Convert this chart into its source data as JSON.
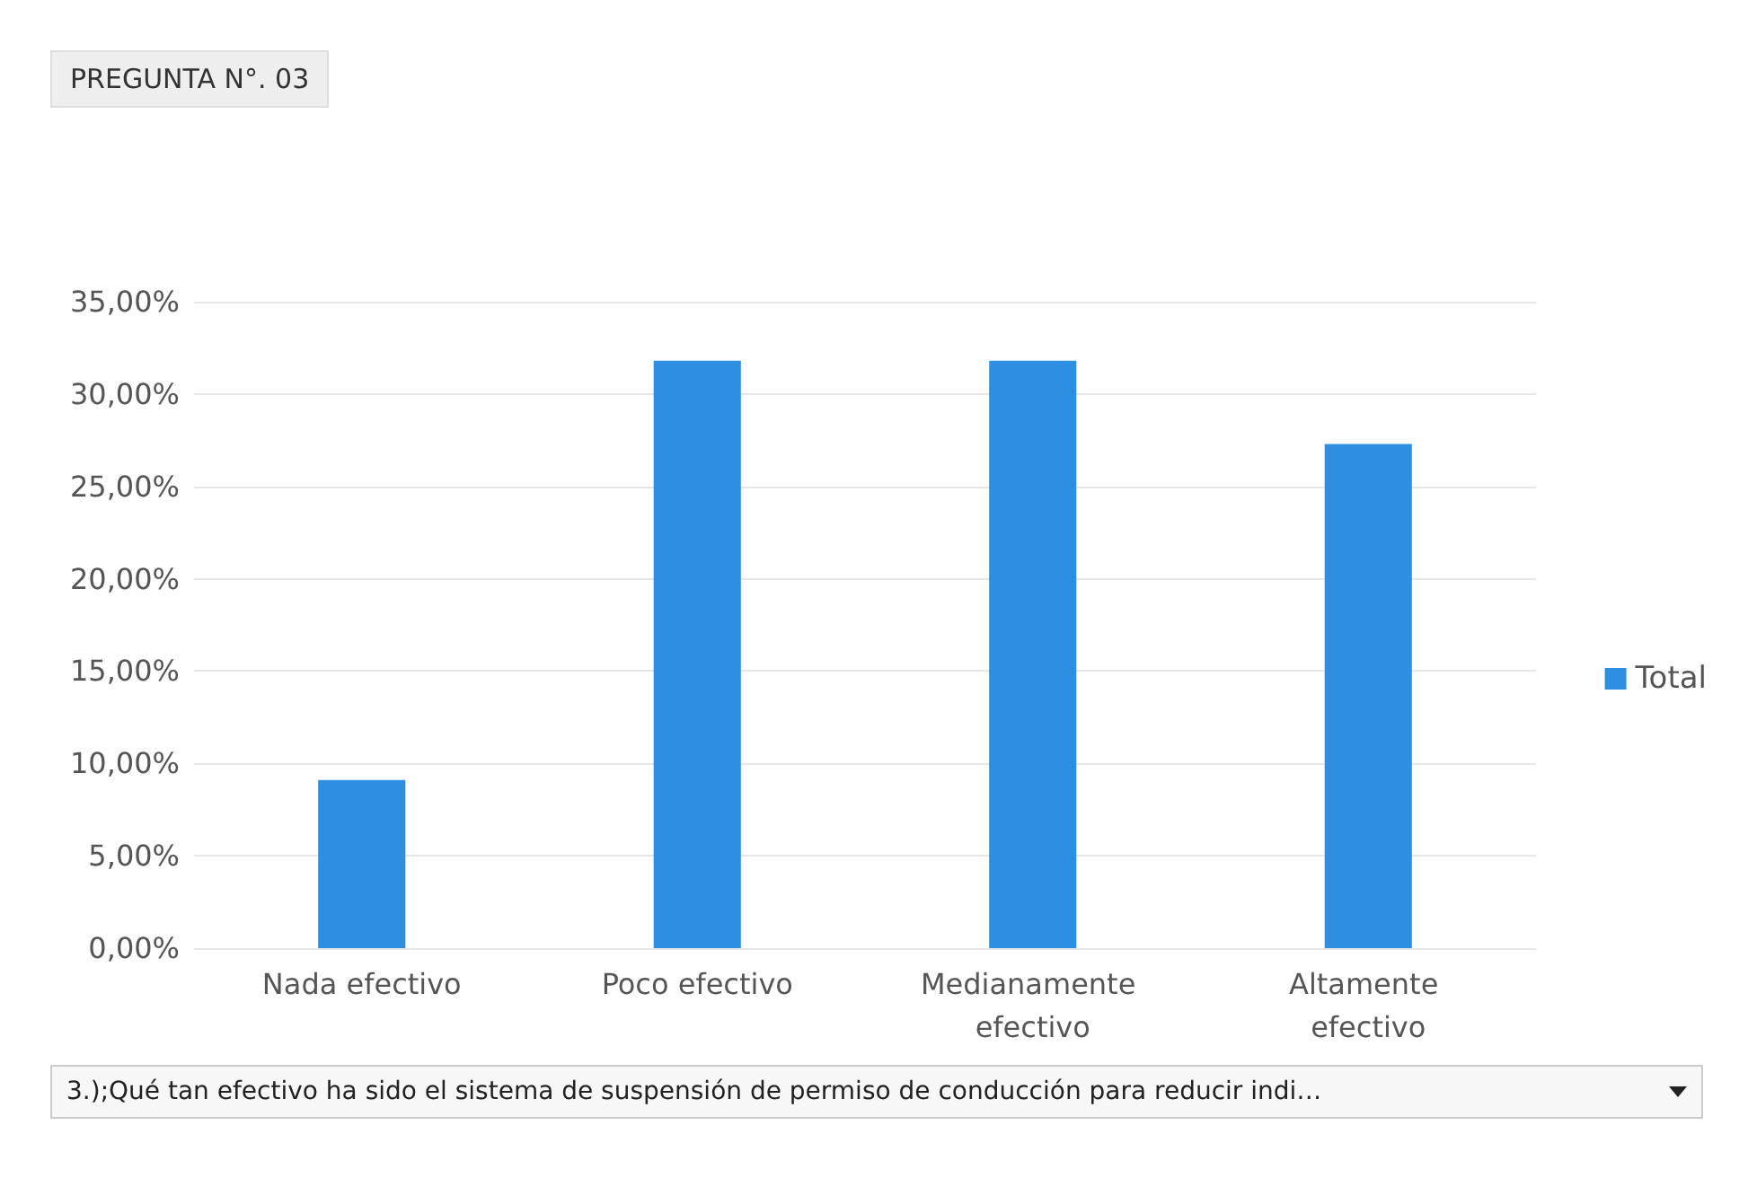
{
  "chart_data": {
    "type": "bar",
    "title": "PREGUNTA N°. 03",
    "categories": [
      "Nada efectivo",
      "Poco efectivo",
      "Medianamente efectivo",
      "Altamente efectivo"
    ],
    "series": [
      {
        "name": "Total",
        "color": "#2e8fe0",
        "values": [
          9.1,
          31.8,
          31.8,
          27.3
        ]
      }
    ],
    "ylim": [
      0,
      35
    ],
    "yticks": [
      {
        "value": 0,
        "label": "0,00%"
      },
      {
        "value": 5,
        "label": "5,00%"
      },
      {
        "value": 10,
        "label": "10,00%"
      },
      {
        "value": 15,
        "label": "15,00%"
      },
      {
        "value": 20,
        "label": "20,00%"
      },
      {
        "value": 25,
        "label": "25,00%"
      },
      {
        "value": 30,
        "label": "30,00%"
      },
      {
        "value": 35,
        "label": "35,00%"
      }
    ],
    "grid": "y",
    "legend": "right",
    "annotations": [
      "3.);Qué tan efectivo ha sido el sistema de suspensión de permiso de conducción  para reducir indi…"
    ]
  }
}
